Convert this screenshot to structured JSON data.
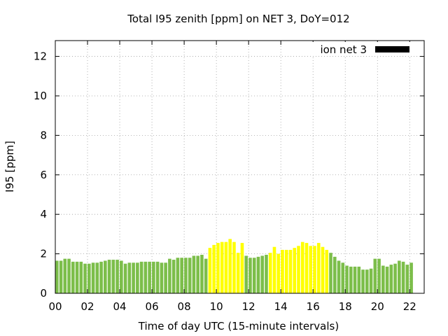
{
  "chart_data": {
    "type": "bar",
    "title": "Total I95 zenith [ppm] on NET 3, DoY=012",
    "xlabel": "Time of day UTC (15-minute intervals)",
    "ylabel": "I95 [ppm]",
    "legend": {
      "label": "ion net 3",
      "swatch_color": "#000000",
      "placement": "top-right"
    },
    "xlim": [
      0,
      22.9
    ],
    "ylim": [
      0,
      12.8
    ],
    "x_ticks": [
      "00",
      "02",
      "04",
      "06",
      "08",
      "10",
      "12",
      "14",
      "16",
      "18",
      "20",
      "22"
    ],
    "x_tick_hours": [
      0,
      2,
      4,
      6,
      8,
      10,
      12,
      14,
      16,
      18,
      20,
      22
    ],
    "y_ticks": [
      "0",
      "2",
      "4",
      "6",
      "8",
      "10",
      "12"
    ],
    "y_tick_values": [
      0,
      2,
      4,
      6,
      8,
      10,
      12
    ],
    "grid": true,
    "bar_colors": {
      "normal": "#7cbe4a",
      "elevated": "#ffff00"
    },
    "bar_width_hours": 0.2,
    "series": [
      {
        "x_start_hour": 0,
        "interval_hours": 0.25,
        "values": [
          1.65,
          1.65,
          1.75,
          1.75,
          1.6,
          1.6,
          1.6,
          1.5,
          1.5,
          1.55,
          1.55,
          1.6,
          1.65,
          1.7,
          1.7,
          1.7,
          1.65,
          1.5,
          1.55,
          1.55,
          1.55,
          1.6,
          1.6,
          1.6,
          1.6,
          1.6,
          1.55,
          1.55,
          1.75,
          1.7,
          1.8,
          1.8,
          1.8,
          1.8,
          1.9,
          1.9,
          1.95,
          1.75,
          2.3,
          2.45,
          2.55,
          2.6,
          2.6,
          2.75,
          2.6,
          2.05,
          2.55,
          1.9,
          1.8,
          1.8,
          1.85,
          1.9,
          1.95,
          2.05,
          2.35,
          2.0,
          2.2,
          2.2,
          2.2,
          2.3,
          2.4,
          2.6,
          2.55,
          2.4,
          2.4,
          2.55,
          2.35,
          2.2,
          2.05,
          1.85,
          1.65,
          1.55,
          1.4,
          1.35,
          1.35,
          1.35,
          1.2,
          1.2,
          1.25,
          1.75,
          1.75,
          1.4,
          1.35,
          1.45,
          1.5,
          1.65,
          1.6,
          1.45,
          1.55
        ],
        "elevated_flags": [
          0,
          0,
          0,
          0,
          0,
          0,
          0,
          0,
          0,
          0,
          0,
          0,
          0,
          0,
          0,
          0,
          0,
          0,
          0,
          0,
          0,
          0,
          0,
          0,
          0,
          0,
          0,
          0,
          0,
          0,
          0,
          0,
          0,
          0,
          0,
          0,
          0,
          0,
          1,
          1,
          1,
          1,
          1,
          1,
          1,
          1,
          1,
          0,
          0,
          0,
          0,
          0,
          0,
          1,
          1,
          1,
          1,
          1,
          1,
          1,
          1,
          1,
          1,
          1,
          1,
          1,
          1,
          1,
          0,
          0,
          0,
          0,
          0,
          0,
          0,
          0,
          0,
          0,
          0,
          0,
          0,
          0,
          0,
          0,
          0,
          0,
          0,
          0,
          0
        ]
      }
    ]
  }
}
